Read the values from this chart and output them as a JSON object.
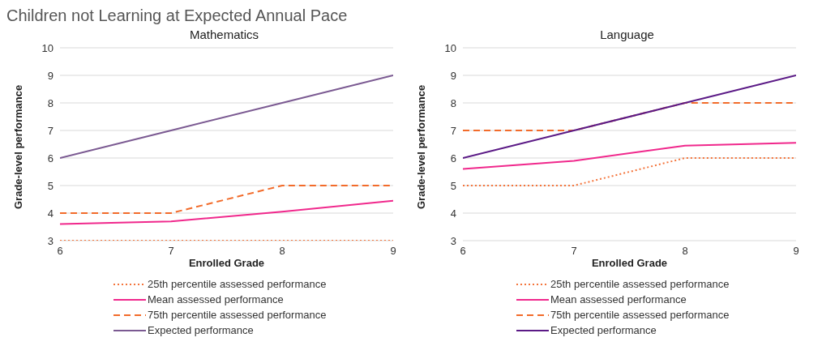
{
  "chart_data": [
    {
      "type": "line",
      "title": "Children not Learning at Expected Annual Pace",
      "subtitle": "Mathematics",
      "xlabel": "Enrolled Grade",
      "ylabel": "Grade-level performance",
      "x": [
        6,
        7,
        8,
        9
      ],
      "xlim": [
        6,
        9
      ],
      "xticks": [
        6,
        7,
        8,
        9
      ],
      "ylim": [
        3,
        10
      ],
      "yticks": [
        3,
        4,
        5,
        6,
        7,
        8,
        9,
        10
      ],
      "grid": "y",
      "legend": "bottom",
      "marker": "none",
      "series": [
        {
          "name": "25th percentile assessed performance",
          "color": "#f4743b",
          "line_style": "dotted",
          "values": [
            3,
            3,
            3,
            3
          ]
        },
        {
          "name": "Mean assessed performance",
          "color": "#f0288c",
          "line_style": "solid",
          "values": [
            3.6,
            3.7,
            4.05,
            4.45
          ]
        },
        {
          "name": "75th percentile assessed performance",
          "color": "#f26b2a",
          "line_style": "dashed",
          "values": [
            4,
            4,
            5,
            5
          ]
        },
        {
          "name": "Expected performance",
          "color": "#7b5a92",
          "line_style": "solid",
          "values": [
            6,
            7,
            8,
            9
          ]
        }
      ]
    },
    {
      "type": "line",
      "subtitle": "Language",
      "xlabel": "Enrolled Grade",
      "ylabel": "Grade-level performance",
      "x": [
        6,
        7,
        8,
        9
      ],
      "xlim": [
        6,
        9
      ],
      "xticks": [
        6,
        7,
        8,
        9
      ],
      "ylim": [
        3,
        10
      ],
      "yticks": [
        3,
        4,
        5,
        6,
        7,
        8,
        9,
        10
      ],
      "grid": "y",
      "legend": "bottom",
      "marker": "none",
      "series": [
        {
          "name": "25th percentile assessed performance",
          "color": "#f4743b",
          "line_style": "dotted",
          "values": [
            5,
            5,
            6,
            6
          ]
        },
        {
          "name": "Mean assessed performance",
          "color": "#f0288c",
          "line_style": "solid",
          "values": [
            5.6,
            5.9,
            6.45,
            6.55
          ]
        },
        {
          "name": "75th percentile assessed performance",
          "color": "#f26b2a",
          "line_style": "dashed",
          "values": [
            7,
            7,
            8,
            8
          ]
        },
        {
          "name": "Expected performance",
          "color": "#5b1a86",
          "line_style": "solid",
          "values": [
            6,
            7,
            8,
            9
          ]
        }
      ]
    }
  ]
}
